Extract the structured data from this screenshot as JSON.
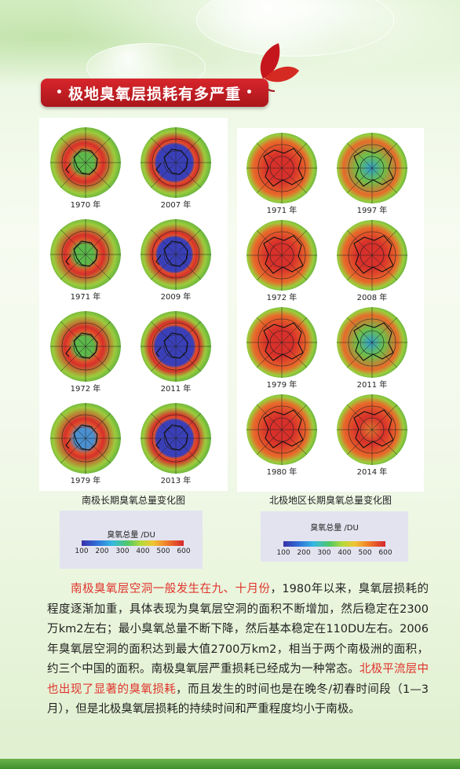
{
  "title": "极地臭氧层损耗有多严重",
  "south_panel": {
    "caption": "南极长期臭氧总量变化图",
    "maps": [
      {
        "year": "1970 年",
        "hole": 0.2
      },
      {
        "year": "2007 年",
        "hole": 0.85
      },
      {
        "year": "1971 年",
        "hole": 0.15
      },
      {
        "year": "2009 年",
        "hole": 0.8
      },
      {
        "year": "1972 年",
        "hole": 0.1
      },
      {
        "year": "2011 年",
        "hole": 0.9
      },
      {
        "year": "1979 年",
        "hole": 0.4
      },
      {
        "year": "2013 年",
        "hole": 0.85
      }
    ],
    "legend": {
      "title": "臭氧总量 /DU",
      "ticks": [
        "100",
        "200",
        "300",
        "400",
        "500",
        "600"
      ]
    }
  },
  "north_panel": {
    "caption": "北极地区长期臭氧总量变化图",
    "maps": [
      {
        "year": "1971 年",
        "hole": 0.0
      },
      {
        "year": "1997 年",
        "hole": 0.6
      },
      {
        "year": "1972 年",
        "hole": 0.0
      },
      {
        "year": "2008 年",
        "hole": 0.2
      },
      {
        "year": "1979 年",
        "hole": 0.0
      },
      {
        "year": "2011 年",
        "hole": 0.7
      },
      {
        "year": "1980 年",
        "hole": 0.0
      },
      {
        "year": "2014 年",
        "hole": 0.35
      }
    ],
    "legend": {
      "title": "臭氧总量 /DU",
      "ticks": [
        "100",
        "200",
        "300",
        "400",
        "500",
        "600"
      ]
    }
  },
  "body": {
    "highlight1": "南极臭氧层空洞一般发生在九、十月份",
    "text1": "，1980年以来，臭氧层损耗的程度逐渐加重，具体表现为臭氧层空洞的面积不断增加，然后稳定在2300万km2左右；最小臭氧总量不断下降，然后基本稳定在110DU左右。2006年臭氧层空洞的面积达到最大值2700万km2，相当于两个南极洲的面积，约三个中国的面积。南极臭氧层严重损耗已经成为一种常态。",
    "highlight2": "北极平流层中也出现了显著的臭氧损耗",
    "text2": "，而且发生的时间也是在晚冬/初春时间段（1—3月），但是北极臭氧层损耗的持续时间和严重程度均小于南极。"
  },
  "colors": {
    "banner": "#c81e24",
    "highlight": "#e0342c",
    "ring_warm": "#d8302a",
    "ozone_mid": "#4fb54a",
    "hole": "#3a3fb8"
  }
}
